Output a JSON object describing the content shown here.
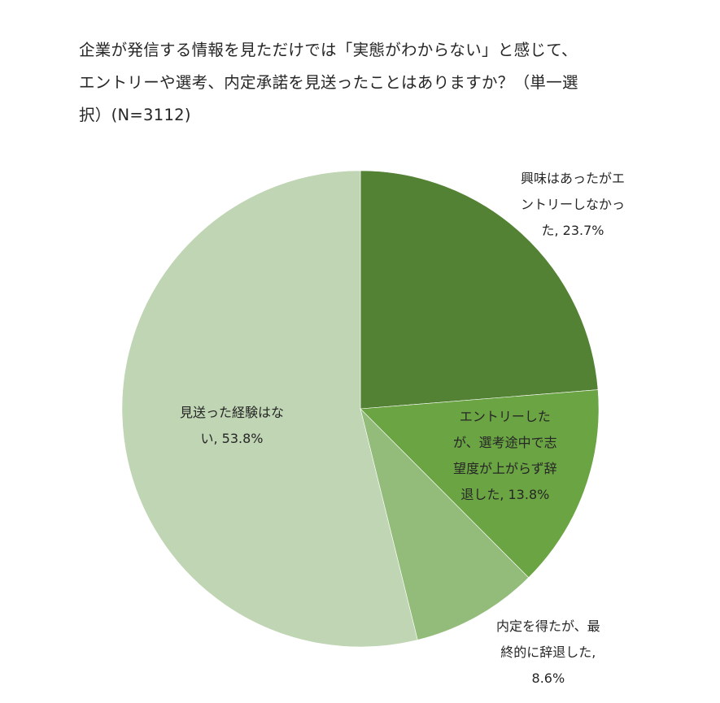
{
  "chart_data": {
    "type": "pie",
    "title_lines": [
      "企業が発信する情報を見ただけでは「実態がわからない」と感じて、",
      "エントリーや選考、内定承諾を見送ったことはありますか？（単一選",
      "択）(N=3112)"
    ],
    "start_angle_deg": 0,
    "direction": "clockwise",
    "slices": [
      {
        "name": "興味はあったがエントリーしなかった",
        "value": 23.7,
        "color": "#548235",
        "label_lines": [
          "興味はあったがエ",
          "ントリーしなかっ",
          "た, 23.7%"
        ]
      },
      {
        "name": "エントリーしたが、選考途中で志望度が上がらず辞退した",
        "value": 13.8,
        "color": "#6aa443",
        "label_lines": [
          "エントリーした",
          "が、選考途中で志",
          "望度が上がらず辞",
          "退した, 13.8%"
        ]
      },
      {
        "name": "内定を得たが、最終的に辞退した",
        "value": 8.6,
        "color": "#93bc7b",
        "label_lines": [
          "内定を得たが、最",
          "終的に辞退した,",
          "8.6%"
        ]
      },
      {
        "name": "見送った経験はない",
        "value": 53.8,
        "color": "#bfd5b3",
        "label_lines": [
          "見送った経験はな",
          "い, 53.8%"
        ]
      }
    ]
  }
}
